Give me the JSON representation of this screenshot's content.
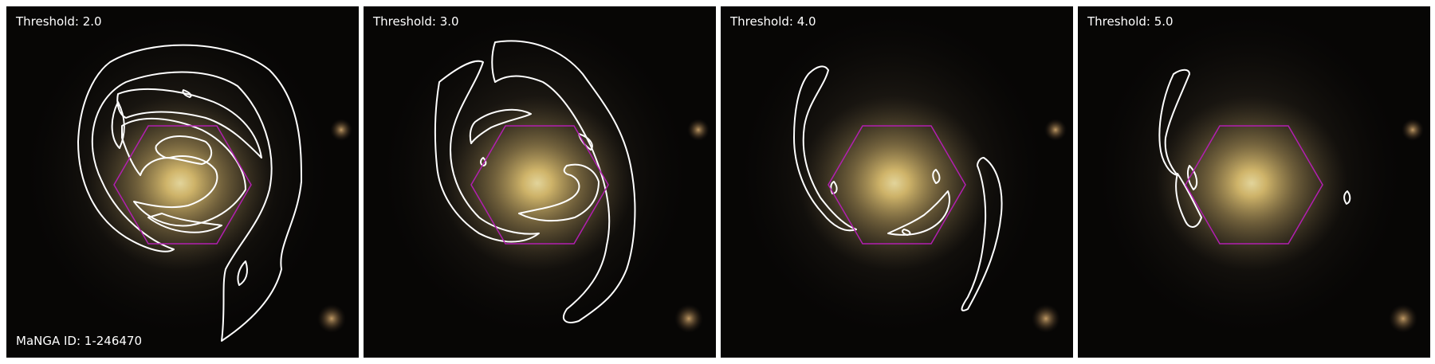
{
  "figure": {
    "panels": [
      {
        "threshold_label": "Threshold: 2.0"
      },
      {
        "threshold_label": "Threshold: 3.0"
      },
      {
        "threshold_label": "Threshold: 4.0"
      },
      {
        "threshold_label": "Threshold: 5.0"
      }
    ],
    "manga_id_label": "MaNGA ID: 1-246470"
  },
  "colors": {
    "contour": "#ffffff",
    "hexagon": "#b21fb0",
    "galaxy_core": "#f7e08e",
    "background": "#070605"
  }
}
